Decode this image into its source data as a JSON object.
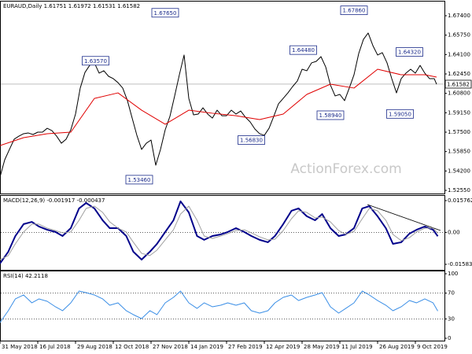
{
  "chart_data": [
    {
      "type": "line",
      "title": "EURAUD,Daily",
      "ohlc": [
        "1.61751",
        "1.61972",
        "1.61531",
        "1.61582"
      ],
      "watermark": "ActionForex.com",
      "xlim": [
        0,
        376
      ],
      "ylim": [
        1.5235,
        1.6847
      ],
      "yticks": [
        {
          "value": 1.674,
          "label": "1.67400"
        },
        {
          "value": 1.6575,
          "label": "1.65750"
        },
        {
          "value": 1.641,
          "label": "1.64100"
        },
        {
          "value": 1.6245,
          "label": "1.62450"
        },
        {
          "value": 1.608,
          "label": "1.60800"
        },
        {
          "value": 1.5915,
          "label": "1.59150"
        },
        {
          "value": 1.575,
          "label": "1.57500"
        },
        {
          "value": 1.5585,
          "label": "1.55850"
        },
        {
          "value": 1.542,
          "label": "1.54200"
        },
        {
          "value": 1.5255,
          "label": "1.52550"
        }
      ],
      "last": {
        "value": 1.61582,
        "label": "1.61582"
      },
      "series": [
        {
          "color": "#000000",
          "x": [
            0,
            4,
            8,
            12,
            16,
            20,
            24,
            28,
            32,
            36,
            40,
            44,
            48,
            52,
            56,
            60,
            64,
            68,
            72,
            76,
            80,
            84,
            88,
            92,
            96,
            100,
            104,
            108,
            112,
            116,
            120,
            124,
            128,
            132,
            136,
            140,
            144,
            148,
            152,
            156,
            160,
            164,
            168,
            172,
            176,
            180,
            184,
            188,
            192,
            196,
            200,
            204,
            208,
            212,
            216,
            220,
            224,
            228,
            232,
            236,
            240,
            244,
            248,
            252,
            256,
            260,
            264,
            268,
            272,
            276,
            280,
            284,
            288,
            292,
            296,
            300,
            304,
            308,
            312,
            316,
            320,
            324,
            328,
            332,
            336,
            340,
            344,
            348,
            352,
            356,
            360,
            364,
            368,
            370
          ],
          "values": [
            1.5369,
            1.5515,
            1.5603,
            1.569,
            1.5716,
            1.5737,
            1.5743,
            1.573,
            1.575,
            1.575,
            1.5783,
            1.5763,
            1.5716,
            1.5656,
            1.569,
            1.577,
            1.5904,
            1.6125,
            1.6258,
            1.6318,
            1.6339,
            1.6252,
            1.6272,
            1.6225,
            1.6205,
            1.6171,
            1.6125,
            1.6018,
            1.587,
            1.5723,
            1.5603,
            1.5656,
            1.5683,
            1.5469,
            1.5603,
            1.577,
            1.5884,
            1.6058,
            1.6238,
            1.6406,
            1.6037,
            1.5897,
            1.5904,
            1.5957,
            1.5904,
            1.587,
            1.5937,
            1.589,
            1.589,
            1.5937,
            1.5904,
            1.593,
            1.5877,
            1.5837,
            1.5777,
            1.5737,
            1.5723,
            1.5783,
            1.5884,
            1.5991,
            1.6037,
            1.6084,
            1.6138,
            1.6185,
            1.6285,
            1.6272,
            1.6339,
            1.6352,
            1.6392,
            1.6305,
            1.6151,
            1.6058,
            1.6071,
            1.6018,
            1.6125,
            1.6238,
            1.6419,
            1.6539,
            1.6593,
            1.6486,
            1.6406,
            1.6426,
            1.6339,
            1.6205,
            1.6084,
            1.6205,
            1.6252,
            1.6285,
            1.6252,
            1.6318,
            1.6252,
            1.6205,
            1.6205,
            1.6158
          ]
        },
        {
          "color": "#e00000",
          "x": [
            0,
            20,
            40,
            60,
            80,
            100,
            120,
            140,
            160,
            180,
            200,
            220,
            240,
            260,
            280,
            300,
            320,
            340,
            360,
            370
          ],
          "values": [
            1.5636,
            1.5703,
            1.5737,
            1.575,
            1.6037,
            1.6084,
            1.5937,
            1.5817,
            1.5937,
            1.5911,
            1.589,
            1.5857,
            1.5904,
            1.6071,
            1.6158,
            1.6125,
            1.6285,
            1.6238,
            1.6238,
            1.6218
          ]
        }
      ],
      "annotations": [
        {
          "label": "1.67650",
          "value": 1.6765,
          "x": 140
        },
        {
          "label": "1.67860",
          "value": 1.6786,
          "x": 300
        },
        {
          "label": "1.63570",
          "value": 1.6357,
          "x": 81
        },
        {
          "label": "1.64480",
          "value": 1.6448,
          "x": 257
        },
        {
          "label": "1.64320",
          "value": 1.6432,
          "x": 347
        },
        {
          "label": "1.58940",
          "value": 1.5894,
          "x": 280
        },
        {
          "label": "1.59050",
          "value": 1.5905,
          "x": 339
        },
        {
          "label": "1.56830",
          "value": 1.5683,
          "x": 213
        },
        {
          "label": "1.53460",
          "value": 1.5346,
          "x": 118
        }
      ]
    },
    {
      "type": "line",
      "title": "MACD(12,26,9) -0.001917 -0.000437",
      "xlim": [
        0,
        376
      ],
      "ylim": [
        -0.015834,
        0.015762
      ],
      "yticks": [
        0.015762,
        {
          "value": 0,
          "label": "0.00"
        },
        -0.015834
      ],
      "levels": [
        0
      ],
      "series": [
        {
          "color": "#00008b",
          "width": 2,
          "x": [
            0,
            7,
            13,
            20,
            27,
            33,
            40,
            47,
            53,
            60,
            67,
            73,
            80,
            87,
            93,
            100,
            107,
            113,
            120,
            127,
            133,
            140,
            147,
            153,
            160,
            167,
            173,
            180,
            187,
            193,
            200,
            207,
            213,
            220,
            227,
            233,
            240,
            247,
            253,
            260,
            267,
            273,
            280,
            287,
            293,
            300,
            307,
            313,
            320,
            327,
            333,
            340,
            347,
            353,
            360,
            367,
            371
          ],
          "values": [
            -0.0154,
            -0.0096,
            -0.0018,
            0.0041,
            0.0052,
            0.0029,
            0.0013,
            0.0002,
            -0.0018,
            0.0021,
            0.0119,
            0.0146,
            0.0119,
            0.006,
            0.0021,
            0.0021,
            -0.0018,
            -0.0096,
            -0.0135,
            -0.0096,
            -0.0057,
            0.0002,
            0.006,
            0.0154,
            0.0099,
            -0.0018,
            -0.0037,
            -0.0018,
            -0.001,
            0.0002,
            0.0021,
            0.0002,
            -0.0018,
            -0.0037,
            -0.0049,
            -0.0018,
            0.0041,
            0.0107,
            0.0119,
            0.008,
            0.006,
            0.0091,
            0.0021,
            -0.0018,
            -0.001,
            0.0021,
            0.0119,
            0.013,
            0.008,
            0.0021,
            -0.0057,
            -0.0049,
            -0.0006,
            0.0013,
            0.0029,
            0.0013,
            -0.0019
          ]
        },
        {
          "color": "#a0a0a0",
          "width": 1,
          "x": [
            0,
            7,
            13,
            20,
            27,
            33,
            40,
            47,
            53,
            60,
            67,
            73,
            80,
            87,
            93,
            100,
            107,
            113,
            120,
            127,
            133,
            140,
            147,
            153,
            160,
            167,
            173,
            180,
            187,
            193,
            200,
            207,
            213,
            220,
            227,
            233,
            240,
            247,
            253,
            260,
            267,
            273,
            280,
            287,
            293,
            300,
            307,
            313,
            320,
            327,
            333,
            340,
            347,
            353,
            360,
            367,
            371
          ],
          "values": [
            -0.0135,
            -0.0115,
            -0.0057,
            0.0002,
            0.0041,
            0.0041,
            0.0021,
            0.0009,
            -0.0002,
            0.0002,
            0.006,
            0.0119,
            0.013,
            0.0099,
            0.0052,
            0.0021,
            0.0002,
            -0.0049,
            -0.0104,
            -0.0115,
            -0.0088,
            -0.0037,
            0.0013,
            0.0091,
            0.013,
            0.006,
            -0.0018,
            -0.003,
            -0.0018,
            -0.0006,
            0.0009,
            0.0013,
            -0.0002,
            -0.0022,
            -0.0037,
            -0.0034,
            0.0009,
            0.0068,
            0.0107,
            0.0099,
            0.0072,
            0.0076,
            0.0052,
            0.0009,
            -0.001,
            0.0005,
            0.0068,
            0.0119,
            0.0107,
            0.006,
            -0.001,
            -0.0041,
            -0.0026,
            0.0002,
            0.0021,
            0.0021,
            -0.0004
          ]
        }
      ]
    },
    {
      "type": "line",
      "title": "RSI(14) 42.2118",
      "xlim": [
        0,
        376
      ],
      "ylim": [
        0,
        100
      ],
      "yticks": [
        100,
        70,
        30,
        0
      ],
      "levels": [
        70,
        30
      ],
      "xticks": [
        {
          "value": 0,
          "label": "31 May 2018"
        },
        {
          "value": 32,
          "label": "16 Jul 2018"
        },
        {
          "value": 64,
          "label": "29 Aug 2018"
        },
        {
          "value": 96,
          "label": "12 Oct 2018"
        },
        {
          "value": 128,
          "label": "27 Nov 2018"
        },
        {
          "value": 160,
          "label": "14 Jan 2019"
        },
        {
          "value": 192,
          "label": "27 Feb 2019"
        },
        {
          "value": 224,
          "label": "12 Apr 2019"
        },
        {
          "value": 256,
          "label": "28 May 2019"
        },
        {
          "value": 288,
          "label": "11 Jul 2019"
        },
        {
          "value": 320,
          "label": "26 Aug 2019"
        },
        {
          "value": 352,
          "label": "9 Oct 2019"
        }
      ],
      "series": [
        {
          "color": "#3a8ee6",
          "width": 1,
          "x": [
            0,
            7,
            13,
            20,
            27,
            33,
            40,
            47,
            53,
            60,
            67,
            73,
            80,
            87,
            93,
            100,
            107,
            113,
            120,
            127,
            133,
            140,
            147,
            153,
            160,
            167,
            173,
            180,
            187,
            193,
            200,
            207,
            213,
            220,
            227,
            233,
            240,
            247,
            253,
            260,
            267,
            273,
            280,
            287,
            293,
            300,
            307,
            313,
            320,
            327,
            333,
            340,
            347,
            353,
            360,
            367,
            371
          ],
          "values": [
            24.4,
            42.7,
            61.0,
            67.1,
            54.9,
            61.0,
            57.3,
            48.8,
            42.7,
            54.9,
            73.2,
            70.7,
            67.1,
            61.0,
            51.2,
            54.9,
            42.7,
            36.6,
            30.5,
            42.7,
            36.6,
            54.9,
            63.4,
            73.2,
            54.9,
            46.3,
            54.9,
            48.8,
            51.2,
            54.9,
            51.2,
            54.9,
            42.7,
            39.0,
            42.7,
            54.9,
            63.4,
            67.1,
            58.5,
            63.4,
            67.1,
            70.7,
            48.8,
            39.0,
            46.3,
            54.9,
            73.2,
            67.1,
            58.5,
            51.2,
            42.7,
            48.8,
            58.5,
            54.9,
            61.0,
            54.9,
            42.2
          ]
        }
      ]
    }
  ]
}
